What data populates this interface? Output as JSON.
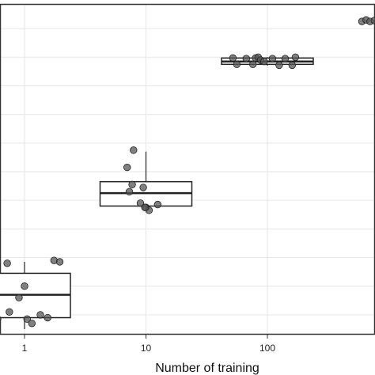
{
  "chart_data": {
    "type": "box",
    "xlabel": "Number of training",
    "ylabel": "",
    "x_scale": "log10",
    "x_ticks": [
      {
        "value": 1,
        "label": "1"
      },
      {
        "value": 10,
        "label": "10"
      },
      {
        "value": 100,
        "label": "100"
      }
    ],
    "ylim": [
      0,
      1.1
    ],
    "grid": true,
    "colors": {
      "panel_border": "#333333",
      "grid": "#e6e6e6",
      "box": "#222222",
      "point": "#555555"
    },
    "groups": [
      {
        "x": 1,
        "q1": 0.04,
        "median": 0.12,
        "q3": 0.195,
        "whisker_low": 0.0,
        "whisker_high": 0.235,
        "points": [
          {
            "x": 0.6,
            "y": 0.035
          },
          {
            "x": 0.75,
            "y": 0.06
          },
          {
            "x": 0.9,
            "y": 0.11
          },
          {
            "x": 1.0,
            "y": 0.15
          },
          {
            "x": 1.05,
            "y": 0.035
          },
          {
            "x": 1.15,
            "y": 0.02
          },
          {
            "x": 1.35,
            "y": 0.05
          },
          {
            "x": 1.55,
            "y": 0.04
          },
          {
            "x": 1.75,
            "y": 0.24
          },
          {
            "x": 1.95,
            "y": 0.235
          },
          {
            "x": 0.72,
            "y": 0.23
          }
        ]
      },
      {
        "x": 10,
        "q1": 0.43,
        "median": 0.475,
        "q3": 0.515,
        "whisker_low": 0.43,
        "whisker_high": 0.62,
        "points": [
          {
            "x": 7.0,
            "y": 0.565
          },
          {
            "x": 7.7,
            "y": 0.505
          },
          {
            "x": 7.3,
            "y": 0.48
          },
          {
            "x": 7.9,
            "y": 0.625
          },
          {
            "x": 9.0,
            "y": 0.44
          },
          {
            "x": 9.5,
            "y": 0.495
          },
          {
            "x": 10.0,
            "y": 0.425
          },
          {
            "x": 10.6,
            "y": 0.415
          },
          {
            "x": 12.5,
            "y": 0.435
          },
          {
            "x": 9.8,
            "y": 0.425
          }
        ]
      },
      {
        "x": 100,
        "q1": 0.925,
        "median": 0.935,
        "q3": 0.947,
        "whisker_low": 0.92,
        "whisker_high": 0.95,
        "points": [
          {
            "x": 52,
            "y": 0.947
          },
          {
            "x": 56,
            "y": 0.925
          },
          {
            "x": 67,
            "y": 0.945
          },
          {
            "x": 76,
            "y": 0.925
          },
          {
            "x": 80,
            "y": 0.947
          },
          {
            "x": 84,
            "y": 0.95
          },
          {
            "x": 88,
            "y": 0.94
          },
          {
            "x": 110,
            "y": 0.945
          },
          {
            "x": 125,
            "y": 0.922
          },
          {
            "x": 140,
            "y": 0.945
          },
          {
            "x": 170,
            "y": 0.95
          },
          {
            "x": 160,
            "y": 0.922
          },
          {
            "x": 94,
            "y": 0.935
          }
        ]
      },
      {
        "x": 1000,
        "q1": 1.075,
        "median": 1.075,
        "q3": 1.075,
        "whisker_low": 1.075,
        "whisker_high": 1.075,
        "points": [
          {
            "x": 600,
            "y": 1.075
          },
          {
            "x": 650,
            "y": 1.08
          },
          {
            "x": 700,
            "y": 1.075
          },
          {
            "x": 760,
            "y": 1.078
          },
          {
            "x": 820,
            "y": 1.075
          }
        ]
      }
    ]
  }
}
